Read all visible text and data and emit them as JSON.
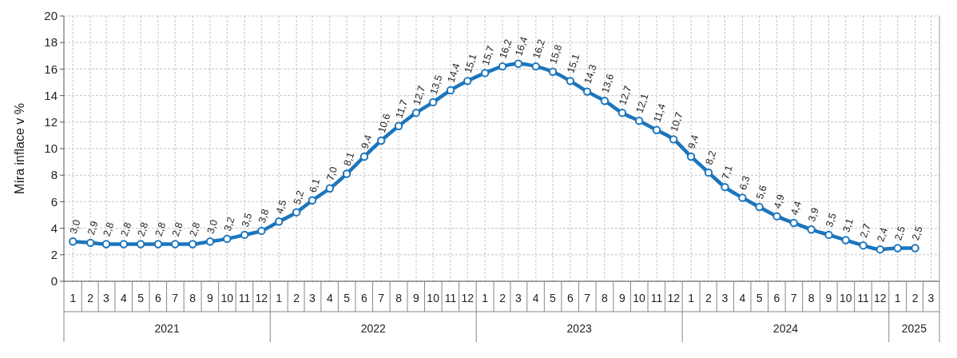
{
  "chart_data": {
    "type": "line",
    "ylabel": "Míra inflace v %",
    "x": [
      "2021-01",
      "2021-02",
      "2021-03",
      "2021-04",
      "2021-05",
      "2021-06",
      "2021-07",
      "2021-08",
      "2021-09",
      "2021-10",
      "2021-11",
      "2021-12",
      "2022-01",
      "2022-02",
      "2022-03",
      "2022-04",
      "2022-05",
      "2022-06",
      "2022-07",
      "2022-08",
      "2022-09",
      "2022-10",
      "2022-11",
      "2022-12",
      "2023-01",
      "2023-02",
      "2023-03",
      "2023-04",
      "2023-05",
      "2023-06",
      "2023-07",
      "2023-08",
      "2023-09",
      "2023-10",
      "2023-11",
      "2023-12",
      "2024-01",
      "2024-02",
      "2024-03",
      "2024-04",
      "2024-05",
      "2024-06",
      "2024-07",
      "2024-08",
      "2024-09",
      "2024-10",
      "2024-11",
      "2024-12",
      "2025-01",
      "2025-02"
    ],
    "series": [
      {
        "color": "#1c75bc",
        "values": [
          3.0,
          2.9,
          2.8,
          2.8,
          2.8,
          2.8,
          2.8,
          2.8,
          3.0,
          3.2,
          3.5,
          3.8,
          4.5,
          5.2,
          6.1,
          7.0,
          8.1,
          9.4,
          10.6,
          11.7,
          12.7,
          13.5,
          14.4,
          15.1,
          15.7,
          16.2,
          16.4,
          16.2,
          15.8,
          15.1,
          14.3,
          13.6,
          12.7,
          12.1,
          11.4,
          10.7,
          9.4,
          8.2,
          7.1,
          6.3,
          5.6,
          4.9,
          4.4,
          3.9,
          3.5,
          3.1,
          2.7,
          2.4,
          2.5,
          2.5
        ],
        "value_labels": [
          "3,0",
          "2,9",
          "2,8",
          "2,8",
          "2,8",
          "2,8",
          "2,8",
          "2,8",
          "3,0",
          "3,2",
          "3,5",
          "3,8",
          "4,5",
          "5,2",
          "6,1",
          "7,0",
          "8,1",
          "9,4",
          "10,6",
          "11,7",
          "12,7",
          "13,5",
          "14,4",
          "15,1",
          "15,7",
          "16,2",
          "16,4",
          "16,2",
          "15,8",
          "15,1",
          "14,3",
          "13,6",
          "12,7",
          "12,1",
          "11,4",
          "10,7",
          "9,4",
          "8,2",
          "7,1",
          "6,3",
          "5,6",
          "4,9",
          "4,4",
          "3,9",
          "3,5",
          "3,1",
          "2,7",
          "2,4",
          "2,5",
          "2,5"
        ]
      }
    ],
    "xlim": [
      "2020-12-16",
      "2025-03-16"
    ],
    "xticks": [
      {
        "value": "2021-01",
        "label": "1"
      },
      {
        "value": "2021-02",
        "label": "2"
      },
      {
        "value": "2021-03",
        "label": "3"
      },
      {
        "value": "2021-04",
        "label": "4"
      },
      {
        "value": "2021-05",
        "label": "5"
      },
      {
        "value": "2021-06",
        "label": "6"
      },
      {
        "value": "2021-07",
        "label": "7"
      },
      {
        "value": "2021-08",
        "label": "8"
      },
      {
        "value": "2021-09",
        "label": "9"
      },
      {
        "value": "2021-10",
        "label": "10"
      },
      {
        "value": "2021-11",
        "label": "11"
      },
      {
        "value": "2021-12",
        "label": "12"
      },
      {
        "value": "2022-01",
        "label": "1"
      },
      {
        "value": "2022-02",
        "label": "2"
      },
      {
        "value": "2022-03",
        "label": "3"
      },
      {
        "value": "2022-04",
        "label": "4"
      },
      {
        "value": "2022-05",
        "label": "5"
      },
      {
        "value": "2022-06",
        "label": "6"
      },
      {
        "value": "2022-07",
        "label": "7"
      },
      {
        "value": "2022-08",
        "label": "8"
      },
      {
        "value": "2022-09",
        "label": "9"
      },
      {
        "value": "2022-10",
        "label": "10"
      },
      {
        "value": "2022-11",
        "label": "11"
      },
      {
        "value": "2022-12",
        "label": "12"
      },
      {
        "value": "2023-01",
        "label": "1"
      },
      {
        "value": "2023-02",
        "label": "2"
      },
      {
        "value": "2023-03",
        "label": "3"
      },
      {
        "value": "2023-04",
        "label": "4"
      },
      {
        "value": "2023-05",
        "label": "5"
      },
      {
        "value": "2023-06",
        "label": "6"
      },
      {
        "value": "2023-07",
        "label": "7"
      },
      {
        "value": "2023-08",
        "label": "8"
      },
      {
        "value": "2023-09",
        "label": "9"
      },
      {
        "value": "2023-10",
        "label": "10"
      },
      {
        "value": "2023-11",
        "label": "11"
      },
      {
        "value": "2023-12",
        "label": "12"
      },
      {
        "value": "2024-01",
        "label": "1"
      },
      {
        "value": "2024-02",
        "label": "2"
      },
      {
        "value": "2024-03",
        "label": "3"
      },
      {
        "value": "2024-04",
        "label": "4"
      },
      {
        "value": "2024-05",
        "label": "5"
      },
      {
        "value": "2024-06",
        "label": "6"
      },
      {
        "value": "2024-07",
        "label": "7"
      },
      {
        "value": "2024-08",
        "label": "8"
      },
      {
        "value": "2024-09",
        "label": "9"
      },
      {
        "value": "2024-10",
        "label": "10"
      },
      {
        "value": "2024-11",
        "label": "11"
      },
      {
        "value": "2024-12",
        "label": "12"
      },
      {
        "value": "2025-01",
        "label": "1"
      },
      {
        "value": "2025-02",
        "label": "2"
      },
      {
        "value": "2025-03",
        "label": "3"
      }
    ],
    "ylim": [
      0,
      20
    ],
    "yticks": [
      0,
      2,
      4,
      6,
      8,
      10,
      12,
      14,
      16,
      18,
      20
    ],
    "grid": true,
    "marker": "circle",
    "line_style": "solid",
    "annotations": [
      "2021",
      "2022",
      "2023",
      "2024",
      "2025"
    ]
  }
}
